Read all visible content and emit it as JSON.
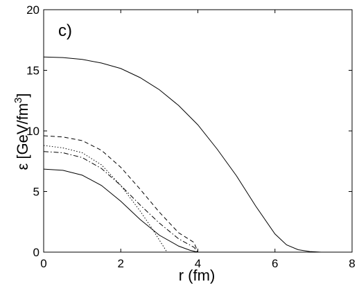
{
  "chart_data": {
    "type": "line",
    "panel_label": "c)",
    "xlabel": "r (fm)",
    "ylabel_main": "ε [GeV/fm",
    "ylabel_sup": "3",
    "ylabel_end": "]",
    "xlim": [
      0,
      8
    ],
    "ylim": [
      0,
      20
    ],
    "xticks": [
      0,
      2,
      4,
      6,
      8
    ],
    "yticks": [
      0,
      5,
      10,
      15,
      20
    ],
    "grid": false,
    "series": [
      {
        "style": "solid",
        "x": [
          0,
          0.5,
          1.0,
          1.5,
          2.0,
          2.5,
          3.0,
          3.5,
          4.0,
          4.5,
          5.0,
          5.5,
          6.0,
          6.3,
          6.6,
          6.9,
          7.2
        ],
        "y": [
          16.1,
          16.05,
          15.9,
          15.6,
          15.15,
          14.4,
          13.4,
          12.1,
          10.5,
          8.5,
          6.3,
          3.8,
          1.5,
          0.6,
          0.2,
          0.05,
          0.0
        ]
      },
      {
        "style": "dashed",
        "x": [
          0,
          0.5,
          1.0,
          1.5,
          2.0,
          2.5,
          3.0,
          3.5,
          3.9,
          4.0
        ],
        "y": [
          9.6,
          9.5,
          9.2,
          8.4,
          7.0,
          5.2,
          3.3,
          1.6,
          0.8,
          0.0
        ]
      },
      {
        "style": "dashdot",
        "x": [
          0,
          0.5,
          1.0,
          1.5,
          2.0,
          2.5,
          3.0,
          3.5,
          3.9,
          4.0
        ],
        "y": [
          8.3,
          8.2,
          7.8,
          6.9,
          5.5,
          3.9,
          2.4,
          1.1,
          0.4,
          0.0
        ]
      },
      {
        "style": "dotted",
        "x": [
          0,
          0.5,
          1.0,
          1.5,
          2.0,
          2.5,
          2.8,
          3.0,
          3.2
        ],
        "y": [
          8.8,
          8.6,
          8.2,
          7.2,
          5.5,
          3.4,
          2.0,
          1.0,
          0.0
        ]
      },
      {
        "style": "solid",
        "x": [
          0,
          0.5,
          1.0,
          1.5,
          2.0,
          2.5,
          3.0,
          3.5,
          3.8,
          4.0
        ],
        "y": [
          6.85,
          6.75,
          6.35,
          5.5,
          4.2,
          2.7,
          1.4,
          0.5,
          0.15,
          0.0
        ]
      }
    ]
  }
}
